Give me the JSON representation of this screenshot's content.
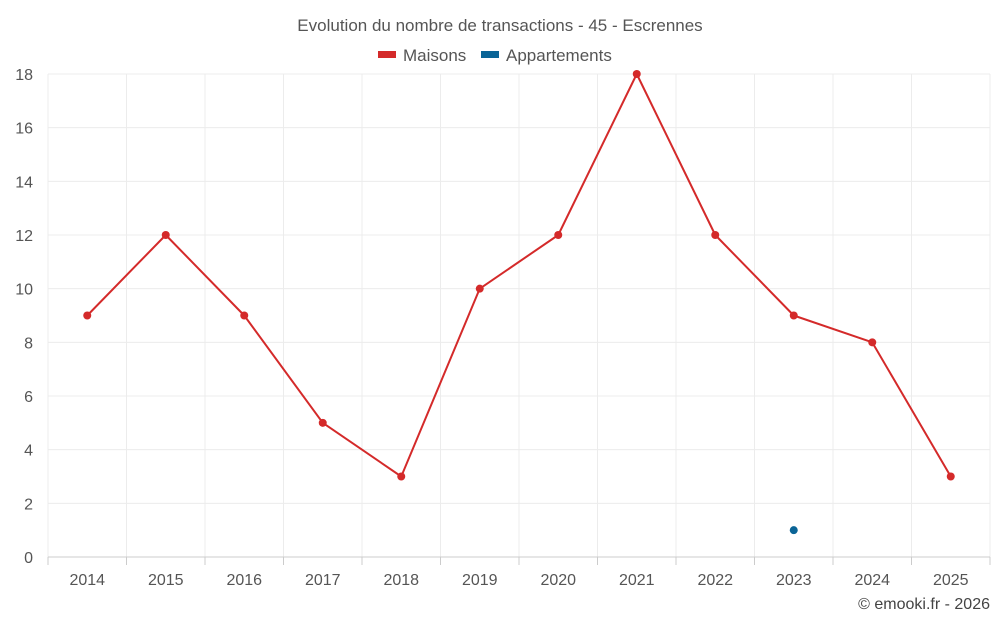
{
  "chart_data": {
    "type": "line",
    "title": "Evolution du nombre de transactions - 45 - Escrennes",
    "categories": [
      "2014",
      "2015",
      "2016",
      "2017",
      "2018",
      "2019",
      "2020",
      "2021",
      "2022",
      "2023",
      "2024",
      "2025"
    ],
    "series": [
      {
        "name": "Maisons",
        "color": "#d42a2a",
        "values": [
          9,
          12,
          9,
          5,
          3,
          10,
          12,
          18,
          12,
          9,
          8,
          3
        ]
      },
      {
        "name": "Appartements",
        "color": "#0a6496",
        "values": [
          null,
          null,
          null,
          null,
          null,
          null,
          null,
          null,
          null,
          1,
          null,
          null
        ]
      }
    ],
    "ylim": [
      0,
      18
    ],
    "yticks": [
      0,
      2,
      4,
      6,
      8,
      10,
      12,
      14,
      16,
      18
    ],
    "grid": true,
    "legend_position": "top-center",
    "xlabel": "",
    "ylabel": ""
  },
  "credit": "© emooki.fr - 2026"
}
